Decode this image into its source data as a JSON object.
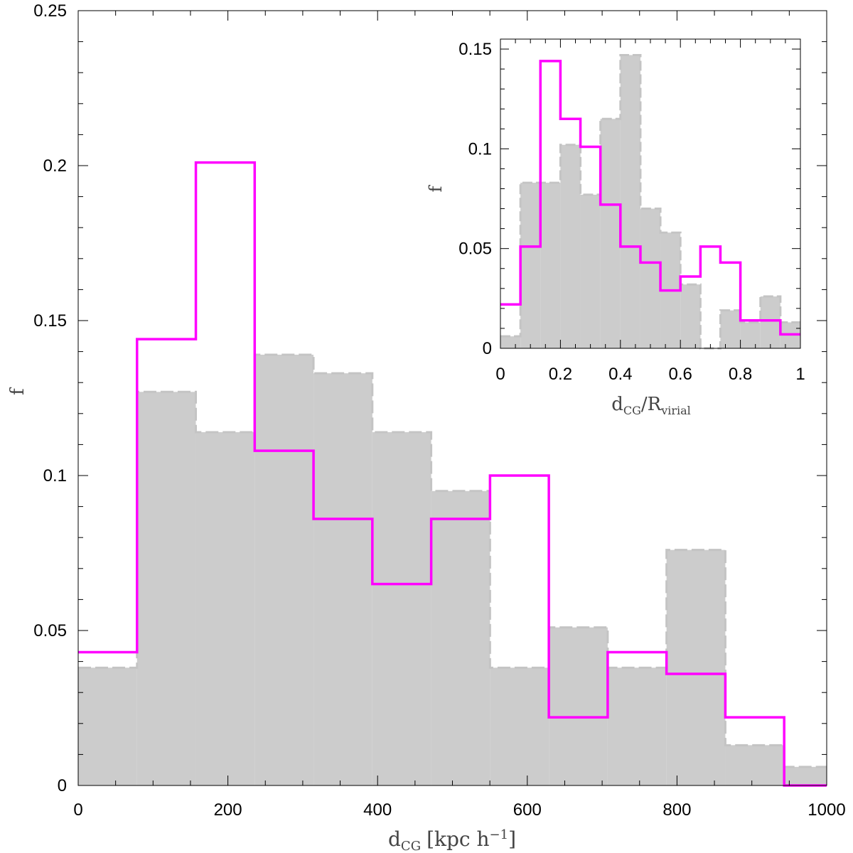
{
  "chart_data": [
    {
      "type": "histogram",
      "xlabel": "d",
      "xlabel_sub": "CG",
      "xlabel_unit": "[kpc h",
      "xlabel_unit_sup": "−1",
      "xlabel_unit_end": "]",
      "ylabel": "f",
      "xlim": [
        0,
        1000
      ],
      "ylim": [
        0,
        0.25
      ],
      "x_ticks": [
        0,
        200,
        400,
        600,
        800,
        1000
      ],
      "x_tick_labels": [
        "0",
        "200",
        "400",
        "600",
        "800",
        "1000"
      ],
      "y_ticks": [
        0,
        0.05,
        0.1,
        0.15,
        0.2,
        0.25
      ],
      "y_tick_labels": [
        "0",
        "0.05",
        "0.1",
        "0.15",
        "0.2",
        "0.25"
      ],
      "bin_edges": [
        0,
        78.6,
        157.2,
        235.8,
        314.4,
        393,
        471.6,
        550.2,
        628.8,
        707.4,
        786,
        864.6,
        943.2,
        1000
      ],
      "series": [
        {
          "style": "filled",
          "color": "#cccccc",
          "values": [
            0.038,
            0.127,
            0.114,
            0.139,
            0.133,
            0.114,
            0.095,
            0.038,
            0.051,
            0.038,
            0.076,
            0.013,
            0.006
          ]
        },
        {
          "style": "step",
          "color": "#ff00ff",
          "values": [
            0.043,
            0.144,
            0.201,
            0.108,
            0.086,
            0.065,
            0.086,
            0.1,
            0.022,
            0.043,
            0.036,
            0.022,
            0.0
          ]
        }
      ]
    },
    {
      "type": "histogram",
      "xlabel": "d",
      "xlabel_sub": "CG",
      "xlabel_mid": "/R",
      "xlabel_sub2": "virial",
      "ylabel": "f",
      "xlim": [
        0,
        1
      ],
      "ylim": [
        0,
        0.155
      ],
      "x_ticks": [
        0,
        0.2,
        0.4,
        0.6,
        0.8,
        1
      ],
      "x_tick_labels": [
        "0",
        "0.2",
        "0.4",
        "0.6",
        "0.8",
        "1"
      ],
      "y_ticks": [
        0,
        0.05,
        0.1,
        0.15
      ],
      "y_tick_labels": [
        "0",
        "0.05",
        "0.1",
        "0.15"
      ],
      "bin_edges": [
        0,
        0.0667,
        0.1333,
        0.2,
        0.2667,
        0.3333,
        0.4,
        0.4667,
        0.5333,
        0.6,
        0.6667,
        0.7333,
        0.8,
        0.8667,
        0.9333,
        1.0
      ],
      "series": [
        {
          "style": "filled",
          "color": "#cccccc",
          "values": [
            0.006,
            0.083,
            0.083,
            0.102,
            0.077,
            0.115,
            0.147,
            0.07,
            0.058,
            0.032,
            0.0,
            0.019,
            0.013,
            0.026,
            0.013
          ]
        },
        {
          "style": "step",
          "color": "#ff00ff",
          "values": [
            0.022,
            0.051,
            0.144,
            0.115,
            0.101,
            0.072,
            0.051,
            0.043,
            0.029,
            0.036,
            0.051,
            0.043,
            0.014,
            0.014,
            0.007
          ]
        }
      ]
    }
  ]
}
